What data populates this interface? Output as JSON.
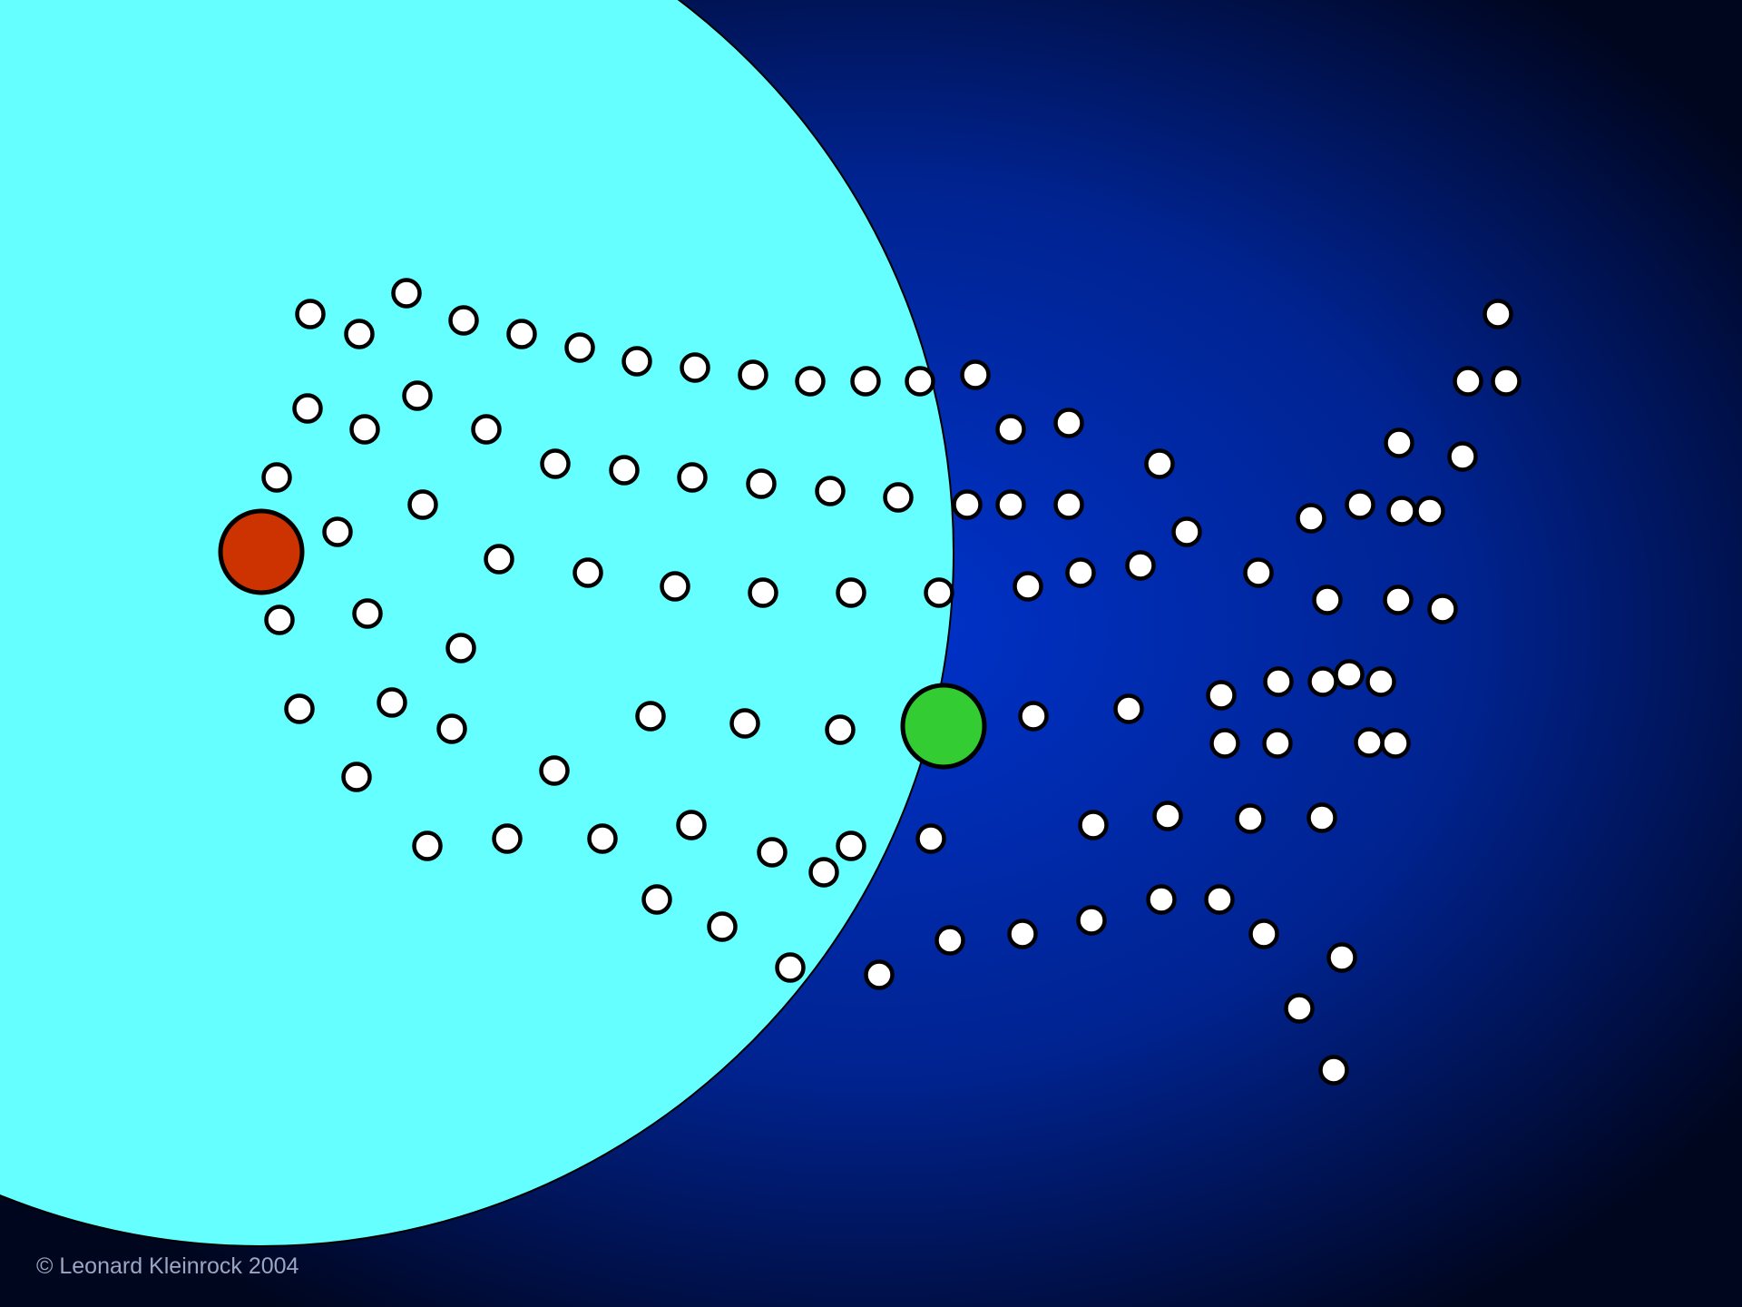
{
  "copyright": "© Leonard Kleinrock 2004",
  "colors": {
    "background_center": "#0033cc",
    "background_edge": "#00061e",
    "coverage_region": "#66ffff",
    "source_node": "#cc3300",
    "destination_node": "#33cc33",
    "relay_node": "#ffffff",
    "outline": "#000000"
  }
}
